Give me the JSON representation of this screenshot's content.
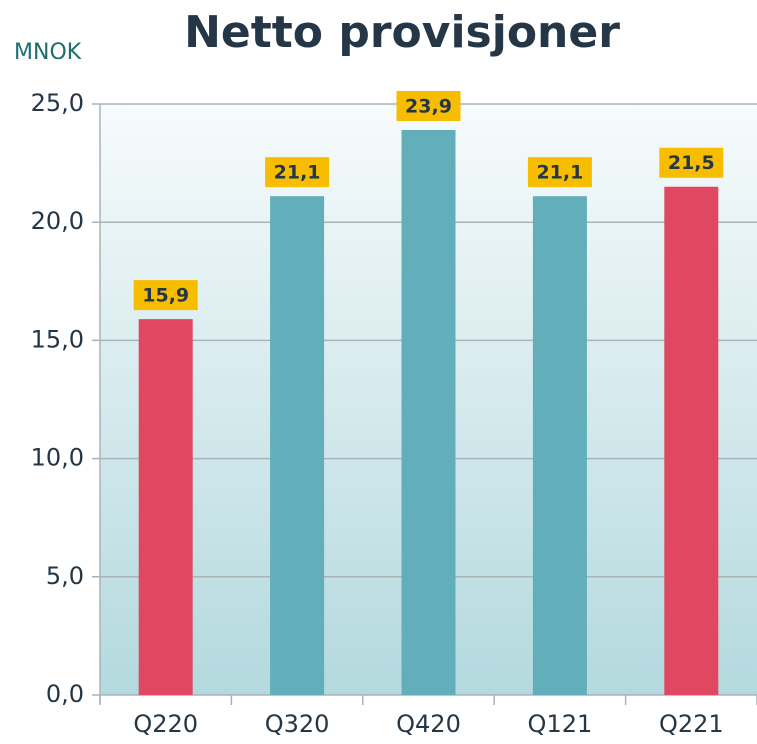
{
  "chart_data": {
    "type": "bar",
    "title": "Netto provisjoner",
    "y_label": "MNOK",
    "categories": [
      "Q220",
      "Q320",
      "Q420",
      "Q121",
      "Q221"
    ],
    "values": [
      15.9,
      21.1,
      23.9,
      21.1,
      21.5
    ],
    "value_labels": [
      "15,9",
      "21,1",
      "23,9",
      "21,1",
      "21,5"
    ],
    "colors": [
      "#e04862",
      "#62aeba",
      "#62aeba",
      "#62aeba",
      "#e04862"
    ],
    "ylim": [
      0,
      25
    ],
    "yticks": [
      {
        "value": 0,
        "label": "0,0"
      },
      {
        "value": 5,
        "label": "5,0"
      },
      {
        "value": 10,
        "label": "10,0"
      },
      {
        "value": 15,
        "label": "15,0"
      },
      {
        "value": 20,
        "label": "20,0"
      },
      {
        "value": 25,
        "label": "25,0"
      }
    ],
    "grid": true
  }
}
